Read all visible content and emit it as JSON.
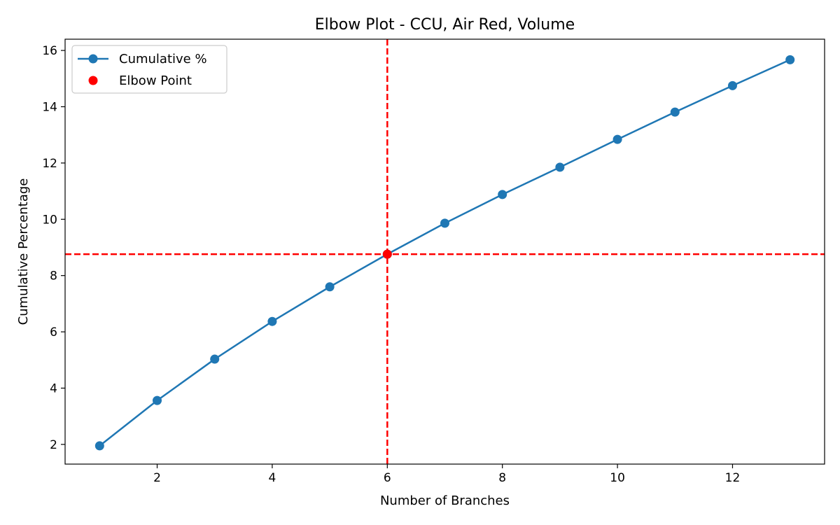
{
  "chart_data": {
    "type": "line",
    "title": "Elbow Plot - CCU, Air Red, Volume",
    "xlabel": "Number of Branches",
    "ylabel": "Cumulative Percentage",
    "xlim": [
      0.4,
      13.6
    ],
    "ylim": [
      1.3,
      16.4
    ],
    "xticks": [
      2,
      4,
      6,
      8,
      10,
      12
    ],
    "yticks": [
      2,
      4,
      6,
      8,
      10,
      12,
      14,
      16
    ],
    "grid": false,
    "legend_position": "upper-left",
    "series": [
      {
        "name": "Cumulative %",
        "color": "#1f77b4",
        "marker": "circle",
        "x": [
          1,
          2,
          3,
          4,
          5,
          6,
          7,
          8,
          9,
          10,
          11,
          12,
          13
        ],
        "y": [
          1.95,
          3.56,
          5.03,
          6.37,
          7.6,
          8.76,
          9.86,
          10.88,
          11.85,
          12.84,
          13.81,
          14.75,
          15.67
        ]
      }
    ],
    "elbow_point": {
      "name": "Elbow Point",
      "x": 6,
      "y": 8.76,
      "color": "#ff0000"
    },
    "reference_lines": {
      "color": "#ff0000",
      "style": "dashed",
      "vertical_x": 6,
      "horizontal_y": 8.76
    }
  }
}
